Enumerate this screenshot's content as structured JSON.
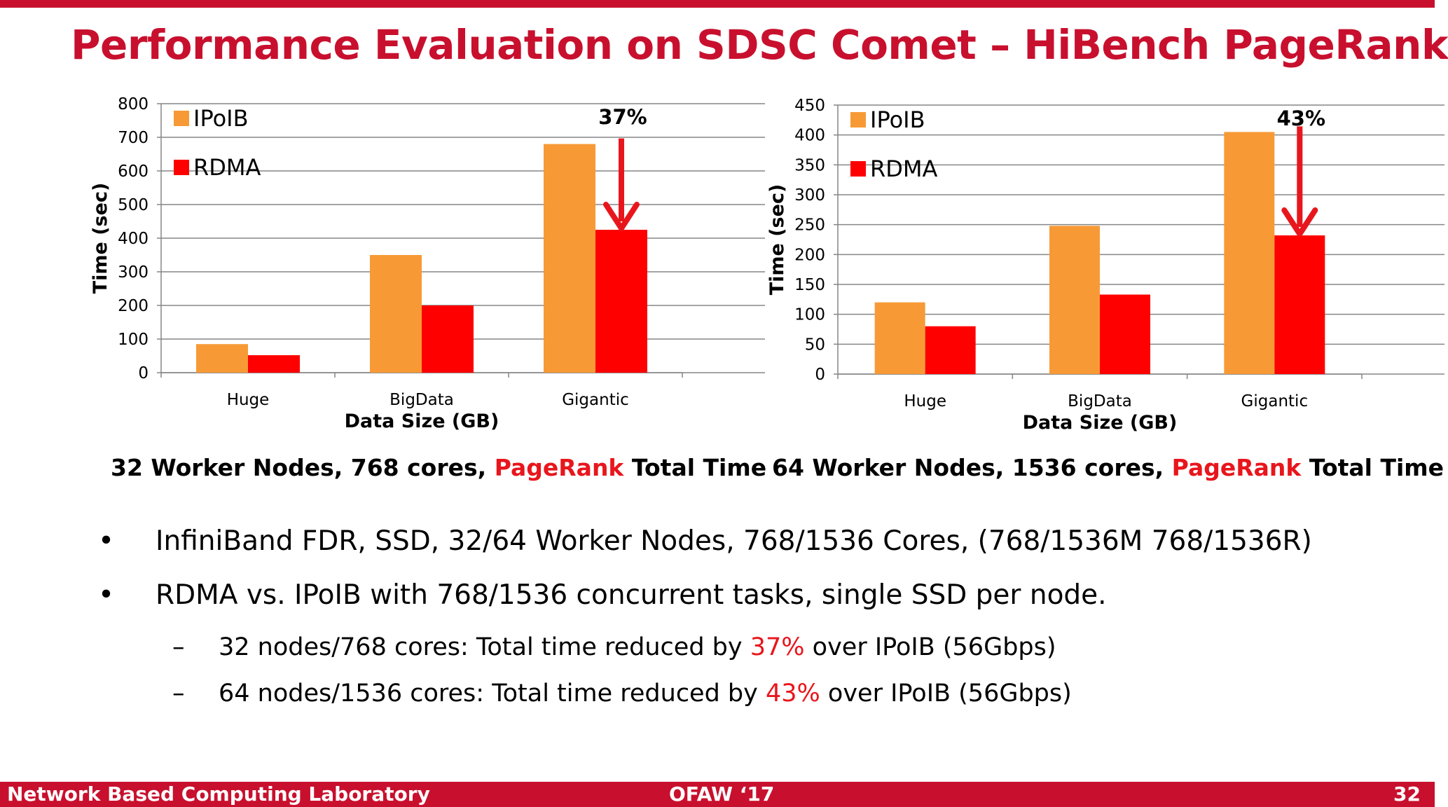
{
  "slide": {
    "title": "Performance Evaluation on SDSC Comet – HiBench PageRank",
    "captions": [
      {
        "prefix": "32 Worker Nodes, 768 cores, ",
        "highlight": "PageRank",
        "suffix": " Total Time"
      },
      {
        "prefix": "64 Worker Nodes, 1536 cores, ",
        "highlight": "PageRank",
        "suffix": " Total Time"
      }
    ],
    "bullets": [
      "InfiniBand FDR, SSD, 32/64 Worker Nodes, 768/1536 Cores, (768/1536M 768/1536R)",
      "RDMA vs. IPoIB with 768/1536 concurrent tasks, single SSD per node."
    ],
    "bullet_symbol": "•",
    "dash_symbol": "–",
    "sub_bullets": [
      {
        "prefix": "32 nodes/768 cores: Total time reduced by ",
        "highlight": "37%",
        "suffix": " over IPoIB (56Gbps)"
      },
      {
        "prefix": "64 nodes/1536 cores: Total time reduced by ",
        "highlight": "43%",
        "suffix": " over IPoIB (56Gbps)"
      }
    ],
    "footer": {
      "lab": "Network Based Computing Laboratory",
      "event": "OFAW ‘17",
      "page": "32"
    }
  },
  "colors": {
    "title": "#c8102e",
    "ipoib": "#f79a36",
    "rdma": "#ff0000",
    "arrow": "#e8161c",
    "grid": "#868686"
  },
  "chart_data": [
    {
      "type": "bar",
      "title": "32 Worker Nodes, 768 cores, PageRank Total Time",
      "categories": [
        "Huge",
        "BigData",
        "Gigantic"
      ],
      "series": [
        {
          "name": "IPoIB",
          "values": [
            85,
            350,
            680
          ]
        },
        {
          "name": "RDMA",
          "values": [
            52,
            200,
            425
          ]
        }
      ],
      "xlabel": "Data Size (GB)",
      "ylabel": "Time (sec)",
      "ylim": [
        0,
        800
      ],
      "yticks": [
        0,
        100,
        200,
        300,
        400,
        500,
        600,
        700,
        800
      ],
      "legend": "top-left",
      "grid": true,
      "annotation": {
        "text": "37%",
        "category": "Gigantic",
        "from_value": 680,
        "to_value": 425
      }
    },
    {
      "type": "bar",
      "title": "64 Worker Nodes, 1536 cores, PageRank Total Time",
      "categories": [
        "Huge",
        "BigData",
        "Gigantic"
      ],
      "series": [
        {
          "name": "IPoIB",
          "values": [
            120,
            248,
            405
          ]
        },
        {
          "name": "RDMA",
          "values": [
            80,
            133,
            232
          ]
        }
      ],
      "xlabel": "Data Size (GB)",
      "ylabel": "Time (sec)",
      "ylim": [
        0,
        450
      ],
      "yticks": [
        0,
        50,
        100,
        150,
        200,
        250,
        300,
        350,
        400,
        450
      ],
      "legend": "top-left",
      "grid": true,
      "annotation": {
        "text": "43%",
        "category": "Gigantic",
        "from_value": 405,
        "to_value": 232
      }
    }
  ]
}
